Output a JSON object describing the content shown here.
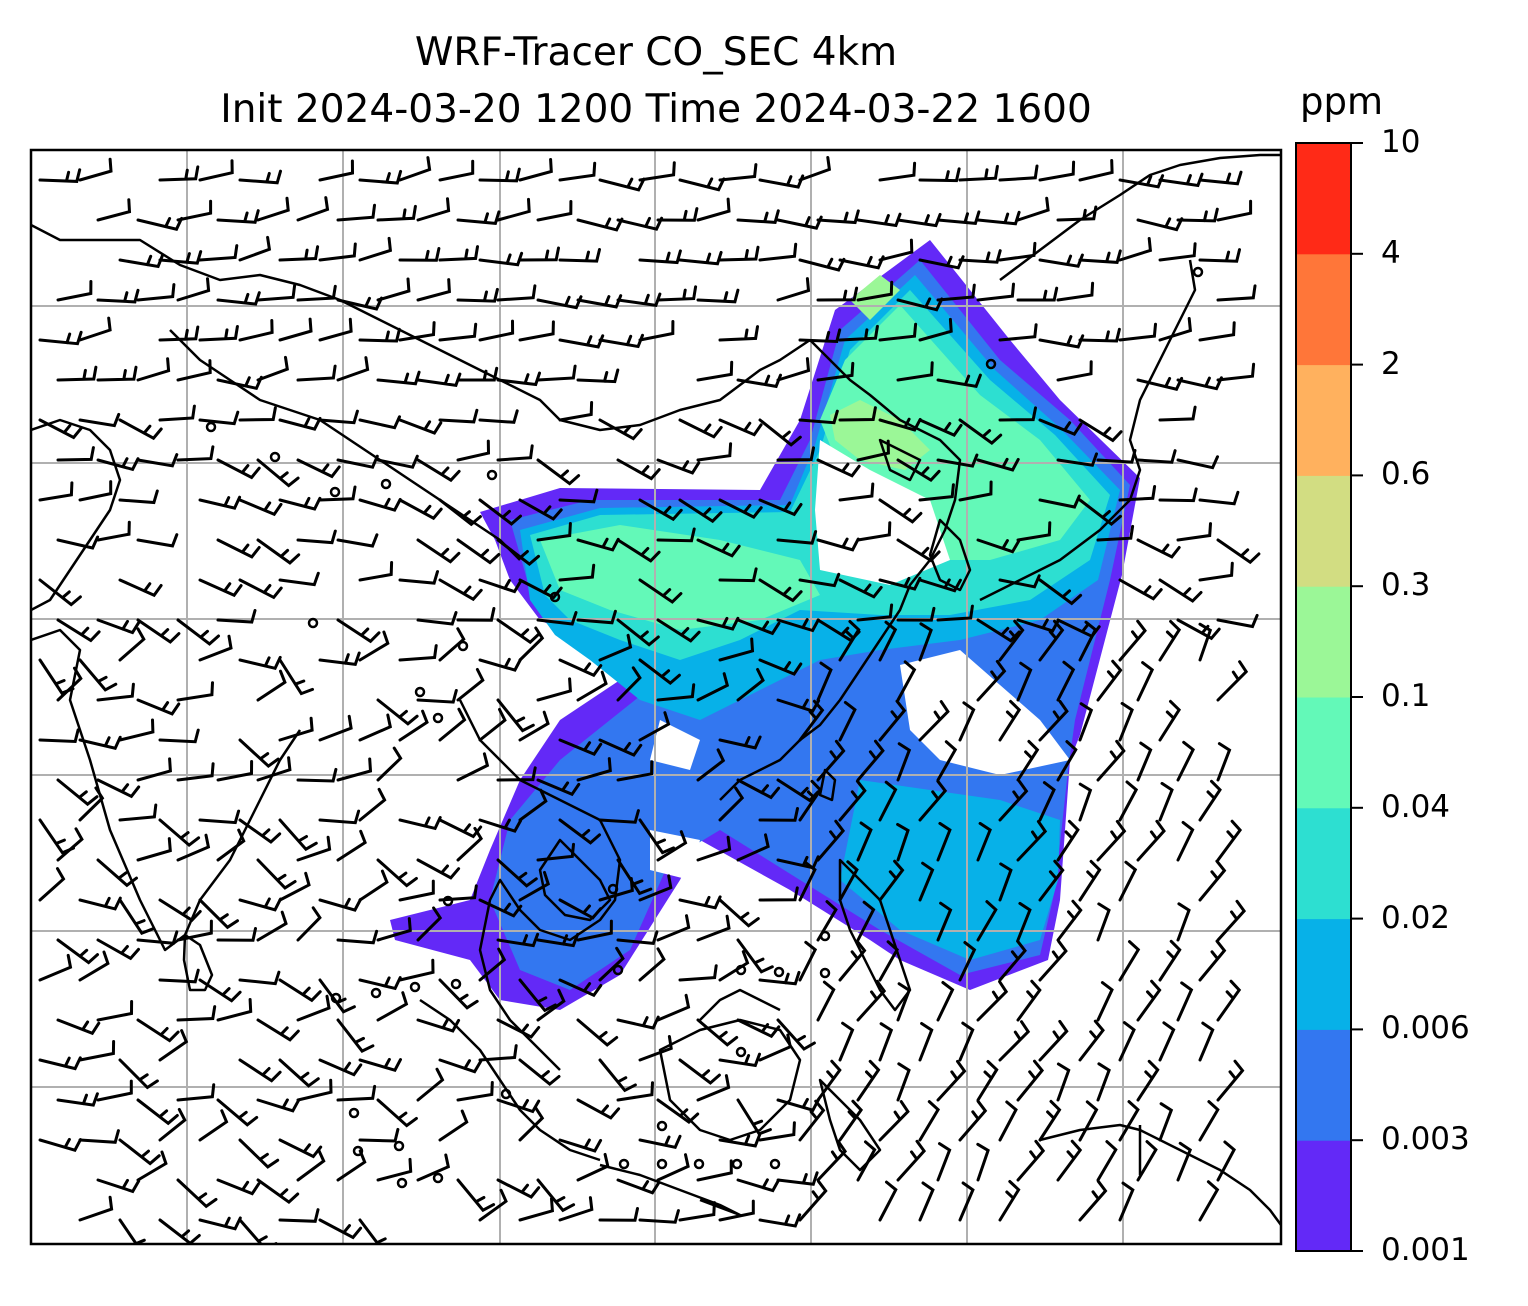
{
  "title": {
    "line1": "WRF-Tracer CO_SEC 4km",
    "line2": "Init 2024-03-20 1200 Time 2024-03-22 1600"
  },
  "colorbar": {
    "unit": "ppm",
    "levels": [
      "0.001",
      "0.003",
      "0.006",
      "0.02",
      "0.04",
      "0.1",
      "0.3",
      "0.6",
      "2",
      "4",
      "10"
    ],
    "colors": [
      "#6329f7",
      "#3377f0",
      "#07b1e8",
      "#2ddfd1",
      "#63f9b8",
      "#9bf797",
      "#d2dd82",
      "#ffb15e",
      "#ff7639",
      "#ff2a17"
    ]
  },
  "map": {
    "tracer": "CO_SEC",
    "resolution": "4km",
    "gridlines": true,
    "wind_barbs": true
  }
}
